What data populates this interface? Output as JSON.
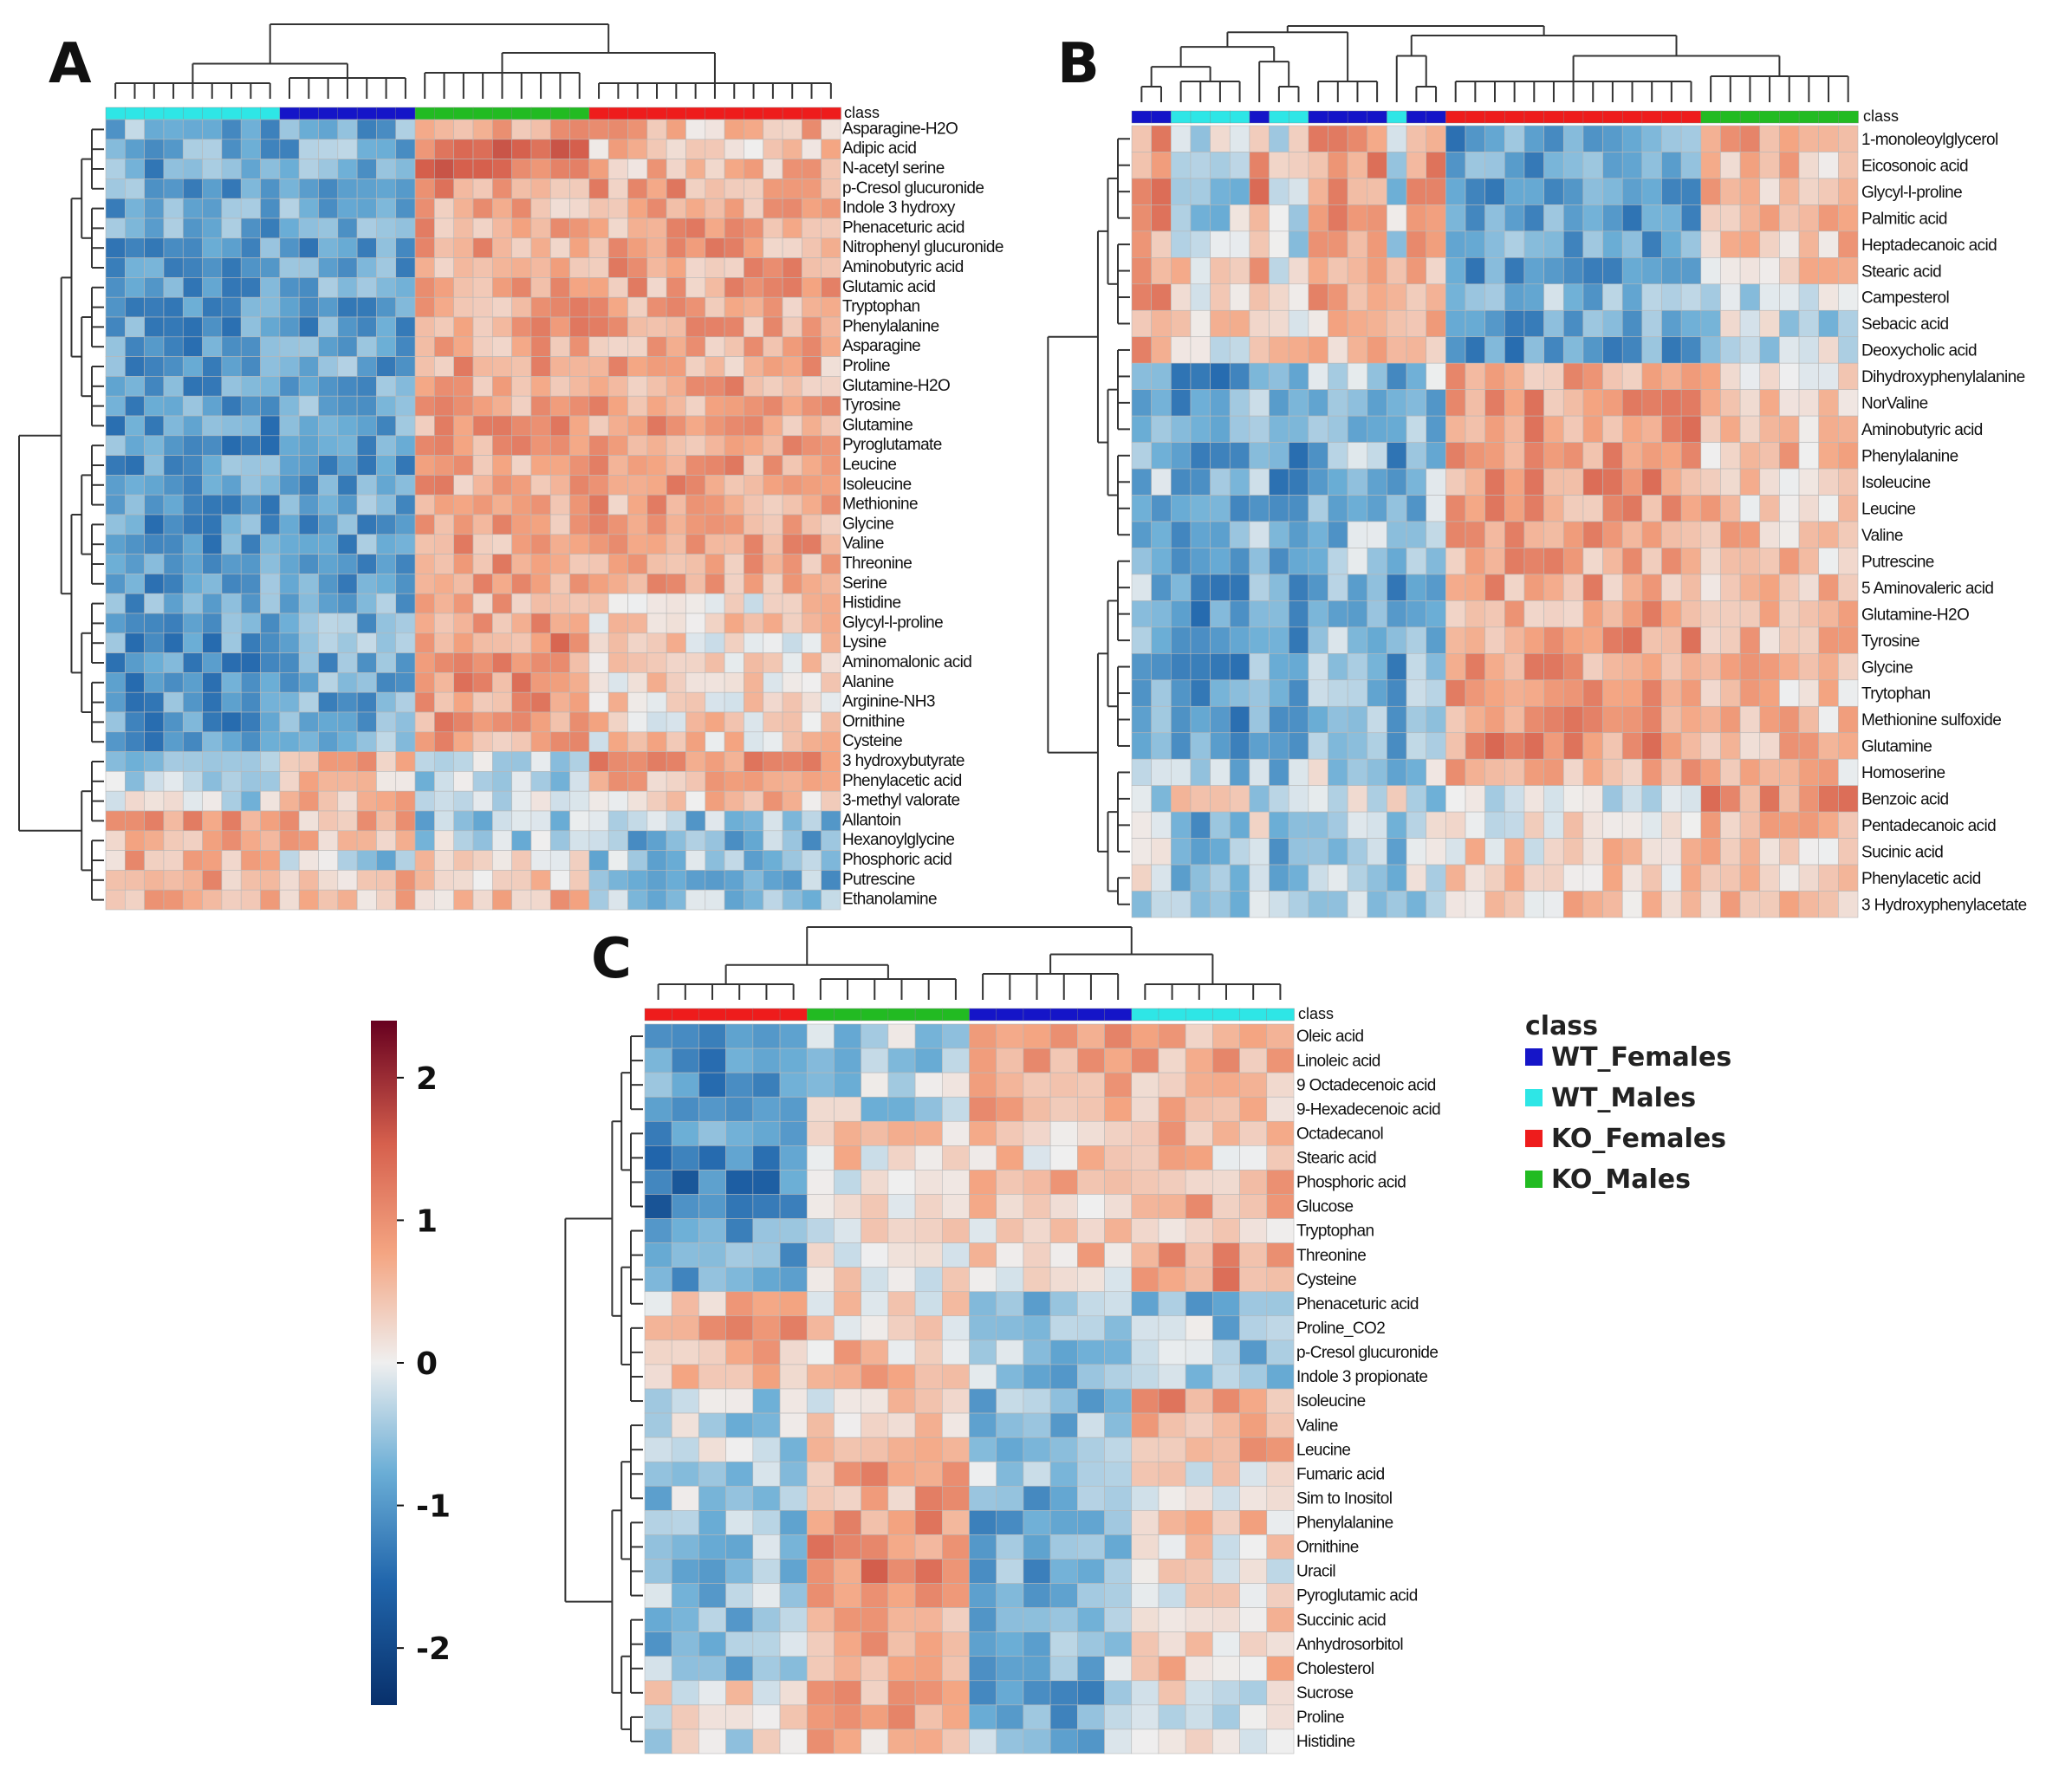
{
  "chart_data": [
    {
      "type": "heatmap",
      "panel": "A",
      "class_label": "class",
      "column_groups": [
        {
          "class": "WT_Males",
          "count": 9
        },
        {
          "class": "WT_Females",
          "count": 7
        },
        {
          "class": "KO_Males",
          "count": 9
        },
        {
          "class": "KO_Females",
          "count": 13
        }
      ],
      "rows": [
        "Asparagine-H2O",
        "Adipic acid",
        "N-acetyl serine",
        "p-Cresol glucuronide",
        "Indole 3 hydroxy",
        "Phenaceturic acid",
        "Nitrophenyl glucuronide",
        "Aminobutyric acid",
        "Glutamic acid",
        "Tryptophan",
        "Phenylalanine",
        "Asparagine",
        "Proline",
        "Glutamine-H2O",
        "Tyrosine",
        "Glutamine",
        "Pyroglutamate",
        "Leucine",
        "Isoleucine",
        "Methionine",
        "Glycine",
        "Valine",
        "Threonine",
        "Serine",
        "Histidine",
        "Glycyl-l-proline",
        "Lysine",
        "Aminomalonic acid",
        "Alanine",
        "Arginine-NH3",
        "Ornithine",
        "Cysteine",
        "3 hydroxybutyrate",
        "Phenylacetic acid",
        "3-methyl valorate",
        "Allantoin",
        "Hexanoylglycine",
        "Phosphoric acid",
        "Putrescine",
        "Ethanolamine"
      ],
      "group_means": [
        [
          -0.8,
          -0.8,
          0.7,
          0.6
        ],
        [
          -0.9,
          -0.8,
          1.2,
          0.5
        ],
        [
          -0.9,
          -0.8,
          1.2,
          0.5
        ],
        [
          -0.9,
          -0.8,
          0.9,
          0.8
        ],
        [
          -0.9,
          -0.8,
          0.7,
          0.8
        ],
        [
          -0.9,
          -0.9,
          0.8,
          0.8
        ],
        [
          -0.9,
          -0.9,
          0.8,
          0.8
        ],
        [
          -0.9,
          -0.9,
          0.8,
          0.8
        ],
        [
          -1.0,
          -0.9,
          0.8,
          0.8
        ],
        [
          -1.0,
          -0.9,
          0.8,
          0.8
        ],
        [
          -1.0,
          -0.9,
          0.8,
          0.8
        ],
        [
          -1.0,
          -0.9,
          0.8,
          0.8
        ],
        [
          -1.0,
          -0.9,
          0.8,
          0.7
        ],
        [
          -1.0,
          -0.9,
          0.8,
          0.8
        ],
        [
          -1.0,
          -0.9,
          0.8,
          0.8
        ],
        [
          -1.0,
          -0.9,
          0.8,
          0.8
        ],
        [
          -1.0,
          -0.9,
          0.8,
          0.8
        ],
        [
          -1.0,
          -0.9,
          0.8,
          0.8
        ],
        [
          -1.0,
          -0.9,
          0.8,
          0.8
        ],
        [
          -1.0,
          -0.9,
          0.8,
          0.8
        ],
        [
          -1.0,
          -0.9,
          0.8,
          0.8
        ],
        [
          -1.0,
          -0.9,
          0.8,
          0.8
        ],
        [
          -1.0,
          -0.9,
          0.8,
          0.8
        ],
        [
          -1.0,
          -0.9,
          0.8,
          0.8
        ],
        [
          -0.9,
          -0.9,
          0.8,
          0.3
        ],
        [
          -1.0,
          -0.8,
          0.9,
          0.3
        ],
        [
          -1.0,
          -0.8,
          1.0,
          0.3
        ],
        [
          -1.1,
          -0.8,
          1.0,
          0.3
        ],
        [
          -1.0,
          -0.8,
          0.9,
          0.3
        ],
        [
          -1.0,
          -0.8,
          0.9,
          0.3
        ],
        [
          -1.0,
          -0.8,
          0.9,
          0.3
        ],
        [
          -1.0,
          -0.8,
          0.8,
          0.3
        ],
        [
          -0.5,
          0.6,
          -0.3,
          0.9
        ],
        [
          -0.5,
          0.6,
          -0.4,
          0.6
        ],
        [
          -0.3,
          0.6,
          -0.4,
          0.5
        ],
        [
          0.8,
          0.6,
          -0.5,
          -0.6
        ],
        [
          0.7,
          0.6,
          -0.4,
          -0.7
        ],
        [
          0.6,
          -0.4,
          0.3,
          -0.5
        ],
        [
          0.7,
          0.5,
          0.3,
          -0.7
        ],
        [
          0.6,
          0.5,
          0.6,
          -0.5
        ]
      ]
    },
    {
      "type": "heatmap",
      "panel": "B",
      "class_label": "class",
      "column_groups": [
        {
          "class": "WT_Females",
          "count": 2
        },
        {
          "class": "WT_Males",
          "count": 4
        },
        {
          "class": "WT_Females",
          "count": 1
        },
        {
          "class": "WT_Males",
          "count": 2
        },
        {
          "class": "WT_Females",
          "count": 4
        },
        {
          "class": "WT_Males",
          "count": 1
        },
        {
          "class": "WT_Females",
          "count": 2
        },
        {
          "class": "KO_Females",
          "count": 13
        },
        {
          "class": "KO_Males",
          "count": 8
        }
      ],
      "rows": [
        "1-monoleoylglycerol",
        "Eicosonoic acid",
        "Glycyl-l-proline",
        "Palmitic acid",
        "Heptadecanoic acid",
        "Stearic acid",
        "Campesterol",
        "Sebacic acid",
        "Deoxycholic acid",
        "Dihydroxyphenylalanine",
        "NorValine",
        "Aminobutyric acid",
        "Phenylalanine",
        "Isoleucine",
        "Leucine",
        "Valine",
        "Putrescine",
        "5 Aminovaleric acid",
        "Glutamine-H2O",
        "Tyrosine",
        "Glycine",
        "Trytophan",
        "Methionine sulfoxide",
        "Glutamine",
        "Homoserine",
        "Benzoic acid",
        "Pentadecanoic acid",
        "Sucinic acid",
        "Phenylacetic acid",
        "3 Hydroxyphenylacetate"
      ],
      "group_means": [
        [
          0.9,
          -0.2,
          -1.0,
          0.7
        ],
        [
          0.9,
          -0.2,
          -1.0,
          0.5
        ],
        [
          1.0,
          -0.3,
          -1.0,
          0.5
        ],
        [
          1.0,
          -0.3,
          -0.9,
          0.6
        ],
        [
          0.8,
          -0.3,
          -0.8,
          0.6
        ],
        [
          0.8,
          0.2,
          -0.9,
          0.5
        ],
        [
          0.8,
          0.3,
          -0.6,
          -0.4
        ],
        [
          0.6,
          0.3,
          -0.9,
          -0.3
        ],
        [
          0.7,
          0.2,
          -1.0,
          -0.3
        ],
        [
          -0.4,
          -1.0,
          0.8,
          0.4
        ],
        [
          -0.6,
          -1.0,
          0.9,
          0.4
        ],
        [
          -0.6,
          -1.0,
          0.9,
          0.5
        ],
        [
          -0.6,
          -1.0,
          0.9,
          0.5
        ],
        [
          -0.6,
          -1.0,
          0.9,
          0.5
        ],
        [
          -0.6,
          -1.0,
          0.9,
          0.5
        ],
        [
          -0.6,
          -1.0,
          0.9,
          0.5
        ],
        [
          -0.6,
          -1.0,
          0.8,
          0.5
        ],
        [
          -0.6,
          -1.0,
          0.8,
          0.5
        ],
        [
          -0.6,
          -1.0,
          0.8,
          0.5
        ],
        [
          -0.6,
          -1.0,
          0.9,
          0.5
        ],
        [
          -0.6,
          -1.0,
          0.9,
          0.5
        ],
        [
          -0.6,
          -1.0,
          0.9,
          0.5
        ],
        [
          -0.6,
          -1.0,
          0.9,
          0.5
        ],
        [
          -0.5,
          -0.9,
          1.0,
          0.5
        ],
        [
          -0.3,
          -0.6,
          0.8,
          0.4
        ],
        [
          -0.3,
          0.1,
          -0.4,
          1.0
        ],
        [
          -0.2,
          -0.8,
          0.2,
          0.5
        ],
        [
          -0.3,
          -0.7,
          0.3,
          0.4
        ],
        [
          -0.2,
          -0.7,
          0.4,
          0.3
        ],
        [
          -0.3,
          -0.6,
          0.4,
          0.4
        ]
      ]
    },
    {
      "type": "heatmap",
      "panel": "C",
      "class_label": "class",
      "column_groups": [
        {
          "class": "KO_Females",
          "count": 6
        },
        {
          "class": "KO_Males",
          "count": 6
        },
        {
          "class": "WT_Females",
          "count": 6
        },
        {
          "class": "WT_Males",
          "count": 6
        }
      ],
      "rows": [
        "Oleic acid",
        "Linoleic acid",
        "9 Octadecenoic acid",
        "9-Hexadecenoic acid",
        "Octadecanol",
        "Stearic acid",
        "Phosphoric acid",
        "Glucose",
        "Tryptophan",
        "Threonine",
        "Cysteine",
        "Phenaceturic acid",
        "Proline_CO2",
        "p-Cresol glucuronide",
        "Indole 3 propionate",
        "Isoleucine",
        "Valine",
        "Leucine",
        "Fumaric acid",
        "Sim to Inositol",
        "Phenylalanine",
        "Ornithine",
        "Uracil",
        "Pyroglutamic acid",
        "Succinic acid",
        "Anhydrosorbitol",
        "Cholesterol",
        "Sucrose",
        "Proline",
        "Histidine"
      ],
      "group_means": [
        [
          -0.9,
          -0.4,
          0.7,
          0.8
        ],
        [
          -1.0,
          -0.4,
          0.7,
          0.8
        ],
        [
          -1.0,
          -0.3,
          0.9,
          0.6
        ],
        [
          -1.0,
          -0.3,
          0.9,
          0.6
        ],
        [
          -1.0,
          0.5,
          0.3,
          0.5
        ],
        [
          -1.3,
          0.3,
          0.4,
          0.5
        ],
        [
          -1.3,
          0.2,
          0.5,
          0.6
        ],
        [
          -1.5,
          0.1,
          0.5,
          0.6
        ],
        [
          -1.0,
          0.1,
          0.4,
          0.4
        ],
        [
          -0.8,
          0.2,
          0.4,
          0.9
        ],
        [
          -0.8,
          0.2,
          0.2,
          0.9
        ],
        [
          0.5,
          0.3,
          -0.7,
          -0.6
        ],
        [
          0.8,
          0.3,
          -0.6,
          -0.5
        ],
        [
          0.6,
          0.5,
          -0.6,
          -0.5
        ],
        [
          0.4,
          0.8,
          -0.6,
          -0.4
        ],
        [
          -0.3,
          0.3,
          -0.7,
          0.9
        ],
        [
          -0.3,
          0.3,
          -0.7,
          0.9
        ],
        [
          -0.3,
          0.3,
          -0.7,
          0.9
        ],
        [
          -0.5,
          0.8,
          -0.5,
          0.2
        ],
        [
          -0.5,
          0.7,
          -0.7,
          0.3
        ],
        [
          -0.4,
          1.0,
          -0.9,
          0.4
        ],
        [
          -0.4,
          1.1,
          -0.8,
          0.3
        ],
        [
          -0.5,
          1.2,
          -0.8,
          0.2
        ],
        [
          -0.5,
          0.9,
          -0.8,
          0.3
        ],
        [
          -0.6,
          0.7,
          -0.6,
          0.5
        ],
        [
          -0.6,
          0.8,
          -0.7,
          0.3
        ],
        [
          -0.5,
          0.7,
          -0.6,
          0.4
        ],
        [
          0.1,
          0.8,
          -0.8,
          0.1
        ],
        [
          0.1,
          0.9,
          -0.8,
          0.0
        ],
        [
          -0.1,
          0.6,
          -0.6,
          0.0
        ]
      ]
    }
  ],
  "colorbar": {
    "ticks": [
      "2",
      "1",
      "0",
      "-1",
      "-2"
    ],
    "tick_values": [
      2,
      1,
      0,
      -1,
      -2
    ],
    "range": [
      -2.4,
      2.4
    ]
  },
  "legend": {
    "title": "class",
    "items": [
      {
        "label": "WT_Females",
        "color": "#1515c8"
      },
      {
        "label": "WT_Males",
        "color": "#2ee6e6"
      },
      {
        "label": "KO_Females",
        "color": "#ee1c1c"
      },
      {
        "label": "KO_Males",
        "color": "#22bb22"
      }
    ]
  },
  "colors": {
    "low": "#08306b",
    "mid": "#efefef",
    "high": "#67001f"
  }
}
